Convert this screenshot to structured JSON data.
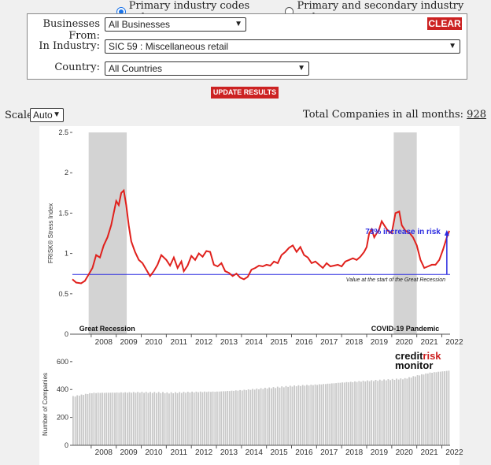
{
  "industry_scope": {
    "options": [
      {
        "label": "Primary industry codes only",
        "selected": true
      },
      {
        "label": "Primary and secondary industry codes",
        "selected": false
      }
    ]
  },
  "filters": {
    "businesses_from": {
      "label": "Businesses From:",
      "value": "All Businesses"
    },
    "in_industry": {
      "label": "In Industry:",
      "value": "SIC 59 : Miscellaneous retail"
    },
    "country": {
      "label": "Country:",
      "value": "All Countries"
    },
    "clear_label": "CLEAR"
  },
  "update_label": "UPDATE RESULTS",
  "scale": {
    "label": "Scale:",
    "value": "Auto"
  },
  "totals": {
    "label": "Total Companies in all months:",
    "value": "928"
  },
  "colors": {
    "line": "#e0201c",
    "baseline": "#2a2ae0",
    "recession": "#d3d3d3",
    "bars": "#c8c8c8",
    "button": "#cc2222"
  },
  "chart_data": [
    {
      "type": "line",
      "ylabel": "FRISK® Stress Index",
      "ylim": [
        0,
        2.5
      ],
      "yticks": [
        "0",
        "0.5",
        "1",
        "1.5",
        "2",
        "2.5"
      ],
      "xlim": [
        2007.25,
        2022.33
      ],
      "xticks": [
        "2008",
        "2009",
        "2010",
        "2011",
        "2012",
        "2013",
        "2014",
        "2015",
        "2016",
        "2017",
        "2018",
        "2019",
        "2020",
        "2021",
        "2022"
      ],
      "baseline": {
        "value": 0.74,
        "label": "Value at the start of the Great Recession"
      },
      "annotation": {
        "text": "73% increase in risk",
        "from": 0.74,
        "to": 1.28,
        "x": 2022.2
      },
      "shaded_regions": [
        {
          "label": "Great Recession",
          "x0": 2007.9,
          "x1": 2009.42
        },
        {
          "label": "COVID-19 Pandemic",
          "x0": 2020.08,
          "x1": 2021.0
        }
      ],
      "series": [
        {
          "points": [
            [
              2007.25,
              0.68
            ],
            [
              2007.4,
              0.64
            ],
            [
              2007.6,
              0.63
            ],
            [
              2007.75,
              0.66
            ],
            [
              2007.9,
              0.74
            ],
            [
              2008.05,
              0.82
            ],
            [
              2008.2,
              0.98
            ],
            [
              2008.35,
              0.95
            ],
            [
              2008.5,
              1.1
            ],
            [
              2008.65,
              1.2
            ],
            [
              2008.8,
              1.35
            ],
            [
              2008.9,
              1.5
            ],
            [
              2009.0,
              1.65
            ],
            [
              2009.1,
              1.6
            ],
            [
              2009.2,
              1.75
            ],
            [
              2009.3,
              1.78
            ],
            [
              2009.4,
              1.6
            ],
            [
              2009.5,
              1.35
            ],
            [
              2009.6,
              1.15
            ],
            [
              2009.75,
              1.02
            ],
            [
              2009.9,
              0.92
            ],
            [
              2010.05,
              0.88
            ],
            [
              2010.2,
              0.8
            ],
            [
              2010.35,
              0.72
            ],
            [
              2010.5,
              0.78
            ],
            [
              2010.65,
              0.86
            ],
            [
              2010.8,
              0.98
            ],
            [
              2011.0,
              0.92
            ],
            [
              2011.15,
              0.85
            ],
            [
              2011.3,
              0.95
            ],
            [
              2011.45,
              0.82
            ],
            [
              2011.6,
              0.9
            ],
            [
              2011.7,
              0.78
            ],
            [
              2011.85,
              0.85
            ],
            [
              2012.0,
              0.97
            ],
            [
              2012.15,
              0.92
            ],
            [
              2012.3,
              1.0
            ],
            [
              2012.45,
              0.96
            ],
            [
              2012.6,
              1.03
            ],
            [
              2012.75,
              1.02
            ],
            [
              2012.9,
              0.86
            ],
            [
              2013.05,
              0.84
            ],
            [
              2013.2,
              0.88
            ],
            [
              2013.35,
              0.78
            ],
            [
              2013.5,
              0.76
            ],
            [
              2013.65,
              0.72
            ],
            [
              2013.8,
              0.75
            ],
            [
              2013.95,
              0.7
            ],
            [
              2014.1,
              0.68
            ],
            [
              2014.25,
              0.71
            ],
            [
              2014.4,
              0.8
            ],
            [
              2014.55,
              0.82
            ],
            [
              2014.7,
              0.85
            ],
            [
              2014.85,
              0.84
            ],
            [
              2015.0,
              0.86
            ],
            [
              2015.15,
              0.85
            ],
            [
              2015.3,
              0.9
            ],
            [
              2015.45,
              0.88
            ],
            [
              2015.6,
              0.98
            ],
            [
              2015.75,
              1.02
            ],
            [
              2015.9,
              1.07
            ],
            [
              2016.05,
              1.1
            ],
            [
              2016.2,
              1.02
            ],
            [
              2016.35,
              1.08
            ],
            [
              2016.5,
              0.98
            ],
            [
              2016.65,
              0.95
            ],
            [
              2016.8,
              0.88
            ],
            [
              2016.95,
              0.9
            ],
            [
              2017.1,
              0.86
            ],
            [
              2017.25,
              0.82
            ],
            [
              2017.4,
              0.88
            ],
            [
              2017.55,
              0.84
            ],
            [
              2017.7,
              0.85
            ],
            [
              2017.85,
              0.86
            ],
            [
              2018.0,
              0.84
            ],
            [
              2018.15,
              0.9
            ],
            [
              2018.3,
              0.92
            ],
            [
              2018.45,
              0.94
            ],
            [
              2018.6,
              0.92
            ],
            [
              2018.75,
              0.96
            ],
            [
              2018.9,
              1.02
            ],
            [
              2019.0,
              1.08
            ],
            [
              2019.1,
              1.25
            ],
            [
              2019.2,
              1.3
            ],
            [
              2019.3,
              1.2
            ],
            [
              2019.4,
              1.25
            ],
            [
              2019.5,
              1.3
            ],
            [
              2019.6,
              1.4
            ],
            [
              2019.7,
              1.35
            ],
            [
              2019.85,
              1.28
            ],
            [
              2020.0,
              1.25
            ],
            [
              2020.15,
              1.5
            ],
            [
              2020.3,
              1.52
            ],
            [
              2020.4,
              1.35
            ],
            [
              2020.55,
              1.28
            ],
            [
              2020.7,
              1.26
            ],
            [
              2020.85,
              1.2
            ],
            [
              2021.0,
              1.1
            ],
            [
              2021.15,
              0.92
            ],
            [
              2021.3,
              0.82
            ],
            [
              2021.45,
              0.84
            ],
            [
              2021.6,
              0.86
            ],
            [
              2021.75,
              0.86
            ],
            [
              2021.9,
              0.92
            ],
            [
              2022.05,
              1.05
            ],
            [
              2022.2,
              1.2
            ],
            [
              2022.3,
              1.28
            ]
          ]
        }
      ]
    },
    {
      "type": "bar",
      "ylabel": "Number of Companies",
      "ylim": [
        0,
        650
      ],
      "yticks": [
        "0",
        "200",
        "400",
        "600"
      ],
      "xlim": [
        2007.25,
        2022.33
      ],
      "xticks": [
        "2008",
        "2009",
        "2010",
        "2011",
        "2012",
        "2013",
        "2014",
        "2015",
        "2016",
        "2017",
        "2018",
        "2019",
        "2020",
        "2021",
        "2022"
      ],
      "logo": [
        "credit",
        "risk",
        "monitor"
      ],
      "series": [
        {
          "months_from": 2007.25,
          "months_to": 2022.25,
          "anchors": [
            [
              2007.25,
              350
            ],
            [
              2008.0,
              375
            ],
            [
              2009.0,
              378
            ],
            [
              2010.0,
              380
            ],
            [
              2010.9,
              378
            ],
            [
              2011.0,
              375
            ],
            [
              2012.0,
              382
            ],
            [
              2013.0,
              385
            ],
            [
              2014.0,
              395
            ],
            [
              2015.0,
              410
            ],
            [
              2016.0,
              425
            ],
            [
              2017.0,
              435
            ],
            [
              2018.0,
              450
            ],
            [
              2019.0,
              462
            ],
            [
              2020.0,
              472
            ],
            [
              2020.5,
              478
            ],
            [
              2021.0,
              500
            ],
            [
              2021.5,
              520
            ],
            [
              2022.25,
              535
            ]
          ]
        }
      ]
    }
  ]
}
